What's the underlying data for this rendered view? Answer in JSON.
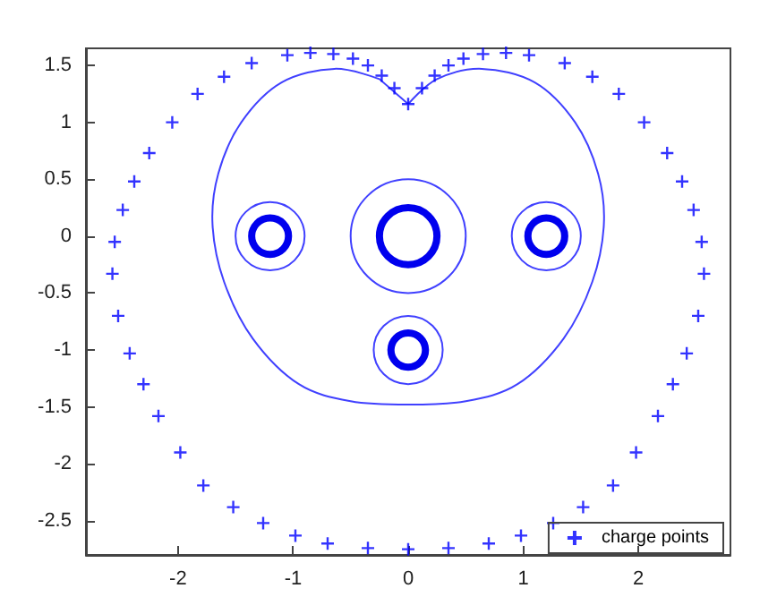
{
  "chart_data": {
    "type": "scatter",
    "legend": "bottom right",
    "grid": false,
    "xlim": [
      -2.8,
      2.8
    ],
    "xticks": [
      -2,
      -1,
      0,
      1,
      2
    ],
    "ylim": [
      -2.8,
      1.65
    ],
    "yticks": [
      -2.5,
      -2,
      -1.5,
      -1,
      -0.5,
      0,
      0.5,
      1,
      1.5
    ],
    "series": [
      {
        "name": "charge points",
        "marker": "cross",
        "color": "#0000ff",
        "x": [
          0,
          -0.12,
          -0.23,
          -0.35,
          -0.48,
          -0.65,
          -0.85,
          -1.05,
          -1.36,
          -1.6,
          -1.83,
          -2.05,
          -2.25,
          -2.38,
          -2.48,
          -2.55,
          -2.57,
          -2.52,
          -2.42,
          -2.3,
          -2.17,
          -1.98,
          -1.78,
          -1.52,
          -1.26,
          -0.98,
          -0.7,
          -0.35,
          0,
          0.35,
          0.7,
          0.98,
          1.26,
          1.52,
          1.78,
          1.98,
          2.17,
          2.3,
          2.42,
          2.52,
          2.57,
          2.55,
          2.48,
          2.38,
          2.25,
          2.05,
          1.83,
          1.6,
          1.36,
          1.05,
          0.85,
          0.65,
          0.48,
          0.35,
          0.23,
          0.12
        ],
        "values": [
          1.16,
          1.3,
          1.41,
          1.5,
          1.56,
          1.6,
          1.61,
          1.59,
          1.52,
          1.4,
          1.25,
          1.0,
          0.73,
          0.48,
          0.23,
          -0.05,
          -0.33,
          -0.7,
          -1.03,
          -1.3,
          -1.58,
          -1.9,
          -2.19,
          -2.38,
          -2.52,
          -2.63,
          -2.7,
          -2.74,
          -2.75,
          -2.74,
          -2.7,
          -2.63,
          -2.52,
          -2.38,
          -2.19,
          -1.9,
          -1.58,
          -1.3,
          -1.03,
          -0.7,
          -0.33,
          -0.05,
          0.23,
          0.48,
          0.73,
          1.0,
          1.25,
          1.4,
          1.52,
          1.59,
          1.61,
          1.6,
          1.56,
          1.5,
          1.41,
          1.3
        ]
      }
    ]
  }
}
